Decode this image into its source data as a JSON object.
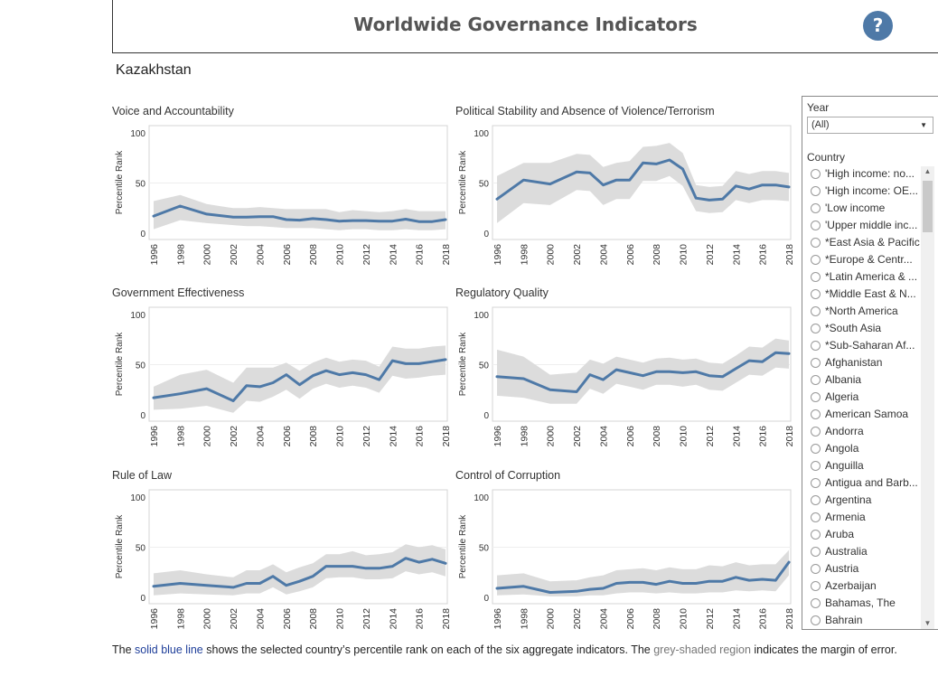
{
  "header": {
    "title": "Worldwide Governance Indicators",
    "help_label": "?"
  },
  "country": "Kazakhstan",
  "filters": {
    "year_label": "Year",
    "year_value": "(All)",
    "country_label": "Country",
    "countries": [
      "'High income: no...",
      "'High income: OE...",
      "'Low income",
      "'Upper middle inc...",
      "*East Asia & Pacific",
      "*Europe & Centr...",
      "*Latin America & ...",
      "*Middle East & N...",
      "*North America",
      "*South Asia",
      "*Sub-Saharan Af...",
      "Afghanistan",
      "Albania",
      "Algeria",
      "American Samoa",
      "Andorra",
      "Angola",
      "Anguilla",
      "Antigua and Barb...",
      "Argentina",
      "Armenia",
      "Aruba",
      "Australia",
      "Austria",
      "Azerbaijan",
      "Bahamas, The",
      "Bahrain"
    ]
  },
  "footer": {
    "part1": "The ",
    "blue": "solid blue line",
    "part2": " shows the selected country’s percentile rank on each of the six aggregate indicators.  The ",
    "grey": "grey-shaded region",
    "part3": " indicates the margin of error."
  },
  "colors": {
    "line": "#4e79a7",
    "band": "#dcdcdc",
    "accent": "#4e79a7"
  },
  "chart_data": [
    {
      "type": "line",
      "title": "Voice and Accountability",
      "ylabel": "Percentile Rank",
      "ylim": [
        0,
        100
      ],
      "yticks": [
        0,
        50,
        100
      ],
      "xticks": [
        "1996",
        "1998",
        "2000",
        "2002",
        "2004",
        "2006",
        "2008",
        "2010",
        "2012",
        "2014",
        "2016",
        "2018"
      ],
      "x": [
        1996,
        1998,
        2000,
        2002,
        2003,
        2004,
        2005,
        2006,
        2007,
        2008,
        2009,
        2010,
        2011,
        2012,
        2013,
        2014,
        2015,
        2016,
        2017,
        2018
      ],
      "values": [
        17,
        27,
        19,
        16,
        16,
        16.5,
        16.5,
        13.5,
        13,
        14.5,
        13.5,
        12,
        12.5,
        12.5,
        12,
        12,
        14,
        11.5,
        11.5,
        13.5
      ],
      "upper": [
        32,
        38,
        29,
        25,
        25,
        26,
        25,
        24,
        24,
        24,
        24,
        21,
        23,
        22,
        21,
        22,
        24,
        22,
        22,
        22
      ],
      "lower": [
        4,
        13,
        10,
        8,
        7,
        7,
        6,
        5,
        5,
        5,
        4,
        3,
        4,
        4,
        3,
        3,
        4,
        3,
        3,
        4
      ]
    },
    {
      "type": "line",
      "title": "Political Stability and Absence of Violence/Terrorism",
      "ylabel": "Percentile Rank",
      "ylim": [
        0,
        100
      ],
      "yticks": [
        0,
        50,
        100
      ],
      "xticks": [
        "1996",
        "1998",
        "2000",
        "2002",
        "2004",
        "2006",
        "2008",
        "2010",
        "2012",
        "2014",
        "2016",
        "2018"
      ],
      "x": [
        1996,
        1998,
        2000,
        2002,
        2003,
        2004,
        2005,
        2006,
        2007,
        2008,
        2009,
        2010,
        2011,
        2012,
        2013,
        2014,
        2015,
        2016,
        2017,
        2018
      ],
      "values": [
        34,
        53,
        49,
        61,
        60,
        48,
        53,
        53,
        70,
        69,
        73,
        64,
        35,
        33,
        34,
        47,
        44,
        48,
        48,
        46
      ],
      "upper": [
        57,
        70,
        70,
        79,
        78,
        66,
        70,
        72,
        86,
        87,
        90,
        80,
        48,
        46,
        47,
        62,
        59,
        62,
        62,
        60
      ],
      "lower": [
        10,
        30,
        28,
        43,
        42,
        28,
        34,
        34,
        52,
        52,
        57,
        47,
        22,
        20,
        21,
        33,
        30,
        33,
        33,
        32
      ]
    },
    {
      "type": "line",
      "title": "Government Effectiveness",
      "ylabel": "Percentile Rank",
      "ylim": [
        0,
        100
      ],
      "yticks": [
        0,
        50,
        100
      ],
      "xticks": [
        "1996",
        "1998",
        "2000",
        "2002",
        "2004",
        "2006",
        "2008",
        "2010",
        "2012",
        "2014",
        "2016",
        "2018"
      ],
      "x": [
        1996,
        1998,
        2000,
        2002,
        2003,
        2004,
        2005,
        2006,
        2007,
        2008,
        2009,
        2010,
        2011,
        2012,
        2013,
        2014,
        2015,
        2016,
        2017,
        2018
      ],
      "values": [
        17,
        21,
        26,
        14,
        29,
        28,
        32,
        40,
        30,
        39,
        44,
        40,
        42,
        40,
        35,
        54,
        51,
        51,
        53,
        55
      ],
      "upper": [
        28,
        40,
        45,
        32,
        47,
        47,
        47,
        52,
        44,
        52,
        57,
        53,
        55,
        54,
        48,
        68,
        66,
        66,
        68,
        69
      ],
      "lower": [
        5,
        6,
        9,
        2,
        14,
        13,
        18,
        25,
        16,
        26,
        31,
        27,
        29,
        27,
        22,
        39,
        36,
        37,
        39,
        40
      ]
    },
    {
      "type": "line",
      "title": "Regulatory Quality",
      "ylabel": "Percentile Rank",
      "ylim": [
        0,
        100
      ],
      "yticks": [
        0,
        50,
        100
      ],
      "xticks": [
        "1996",
        "1998",
        "2000",
        "2002",
        "2004",
        "2006",
        "2008",
        "2010",
        "2012",
        "2014",
        "2016",
        "2018"
      ],
      "x": [
        1996,
        1998,
        2000,
        2002,
        2003,
        2004,
        2005,
        2006,
        2007,
        2008,
        2009,
        2010,
        2011,
        2012,
        2013,
        2014,
        2015,
        2016,
        2017,
        2018
      ],
      "values": [
        38,
        36,
        25,
        23,
        40,
        35,
        45,
        42,
        39,
        43,
        43,
        42,
        43,
        39,
        38,
        46,
        54,
        53,
        62,
        61
      ],
      "upper": [
        65,
        58,
        40,
        42,
        55,
        51,
        58,
        55,
        52,
        56,
        57,
        55,
        56,
        52,
        51,
        59,
        68,
        67,
        76,
        74
      ],
      "lower": [
        19,
        17,
        11,
        11,
        26,
        21,
        31,
        28,
        25,
        30,
        30,
        28,
        30,
        25,
        24,
        32,
        40,
        39,
        47,
        46
      ]
    },
    {
      "type": "line",
      "title": "Rule of Law",
      "ylabel": "Percentile Rank",
      "ylim": [
        0,
        100
      ],
      "yticks": [
        0,
        50,
        100
      ],
      "xticks": [
        "1996",
        "1998",
        "2000",
        "2002",
        "2004",
        "2006",
        "2008",
        "2010",
        "2012",
        "2014",
        "2016",
        "2018"
      ],
      "x": [
        1996,
        1998,
        2000,
        2002,
        2003,
        2004,
        2005,
        2006,
        2007,
        2008,
        2009,
        2010,
        2011,
        2012,
        2013,
        2014,
        2015,
        2016,
        2017,
        2018
      ],
      "values": [
        11,
        14,
        12,
        10,
        14,
        14,
        21,
        12,
        16,
        21,
        31,
        31,
        31,
        29,
        29,
        31,
        39,
        35,
        38,
        34
      ],
      "upper": [
        24,
        27,
        23,
        20,
        27,
        27,
        33,
        25,
        30,
        34,
        43,
        43,
        46,
        42,
        43,
        45,
        53,
        50,
        52,
        48
      ],
      "lower": [
        2,
        4,
        3,
        2,
        4,
        4,
        10,
        3,
        6,
        10,
        19,
        20,
        20,
        18,
        18,
        19,
        26,
        23,
        25,
        21
      ]
    },
    {
      "type": "line",
      "title": "Control of Corruption",
      "ylabel": "Percentile Rank",
      "ylim": [
        0,
        100
      ],
      "yticks": [
        0,
        50,
        100
      ],
      "xticks": [
        "1996",
        "1998",
        "2000",
        "2002",
        "2004",
        "2006",
        "2008",
        "2010",
        "2012",
        "2014",
        "2016",
        "2018"
      ],
      "x": [
        1996,
        1998,
        2000,
        2002,
        2003,
        2004,
        2005,
        2006,
        2007,
        2008,
        2009,
        2010,
        2011,
        2012,
        2013,
        2014,
        2015,
        2016,
        2017,
        2018
      ],
      "values": [
        9,
        11,
        5,
        6,
        8,
        9,
        14,
        15,
        15,
        13,
        16,
        14,
        14,
        16,
        16,
        20,
        17,
        18,
        17,
        35
      ],
      "upper": [
        22,
        24,
        16,
        17,
        20,
        22,
        27,
        28,
        29,
        27,
        30,
        28,
        28,
        32,
        31,
        35,
        32,
        33,
        33,
        47
      ],
      "lower": [
        2,
        3,
        1,
        1,
        2,
        2,
        4,
        5,
        5,
        4,
        5,
        4,
        4,
        5,
        5,
        7,
        6,
        7,
        6,
        22
      ]
    }
  ]
}
